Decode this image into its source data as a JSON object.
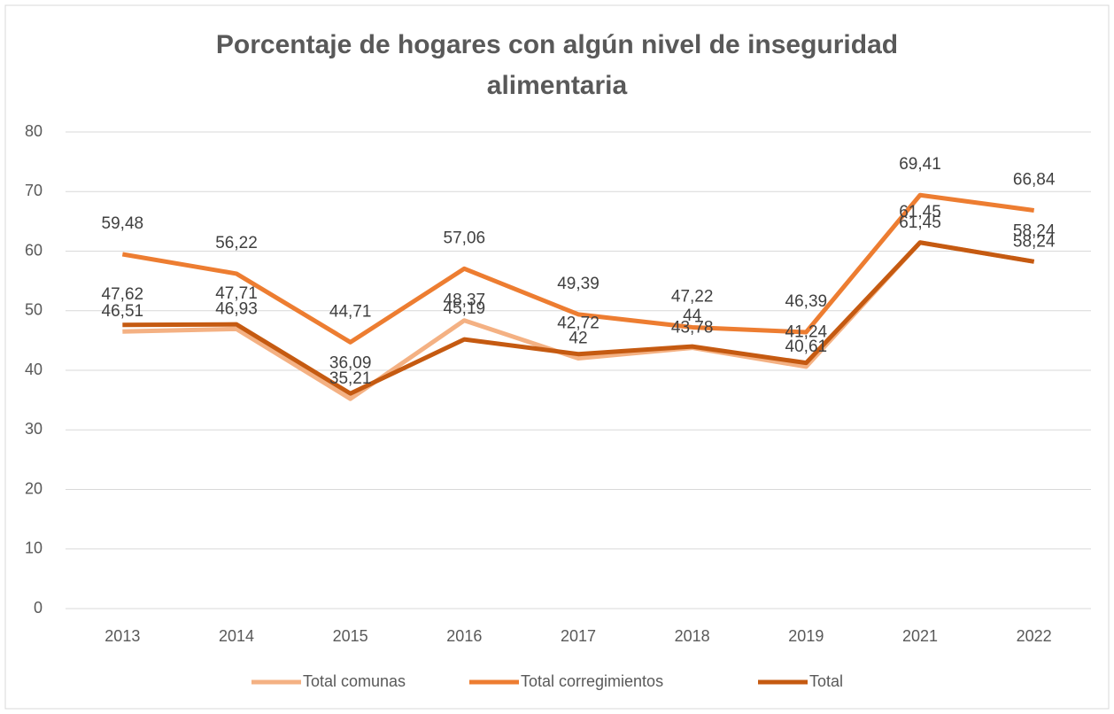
{
  "chart_data": {
    "type": "line",
    "title": "Porcentaje de hogares con algún nivel de inseguridad alimentaria",
    "categories": [
      "2013",
      "2014",
      "2015",
      "2016",
      "2017",
      "2018",
      "2019",
      "2021",
      "2022"
    ],
    "series": [
      {
        "name": "Total comunas",
        "color": "#f4b183",
        "values": [
          46.51,
          46.93,
          35.21,
          48.37,
          42,
          43.78,
          40.61,
          61.45,
          58.24
        ],
        "value_labels": [
          "46,51",
          "46,93",
          "35,21",
          "48,37",
          "42",
          "43,78",
          "40,61",
          "61,45",
          "58,24"
        ]
      },
      {
        "name": "Total corregimientos",
        "color": "#ed7d31",
        "values": [
          59.48,
          56.22,
          44.71,
          57.06,
          49.39,
          47.22,
          46.39,
          69.41,
          66.84
        ],
        "value_labels": [
          "59,48",
          "56,22",
          "44,71",
          "57,06",
          "49,39",
          "47,22",
          "46,39",
          "69,41",
          "66,84"
        ]
      },
      {
        "name": "Total",
        "color": "#c55a11",
        "values": [
          47.62,
          47.71,
          36.09,
          45.19,
          42.72,
          44,
          41.24,
          61.45,
          58.24
        ],
        "value_labels": [
          "47,62",
          "47,71",
          "36,09",
          "45,19",
          "42,72",
          "44",
          "41,24",
          "61,45",
          "58,24"
        ]
      }
    ],
    "ylim": [
      0,
      80
    ],
    "yticks": [
      0,
      10,
      20,
      30,
      40,
      50,
      60,
      70,
      80
    ],
    "grid": true,
    "legend": "bottom"
  }
}
